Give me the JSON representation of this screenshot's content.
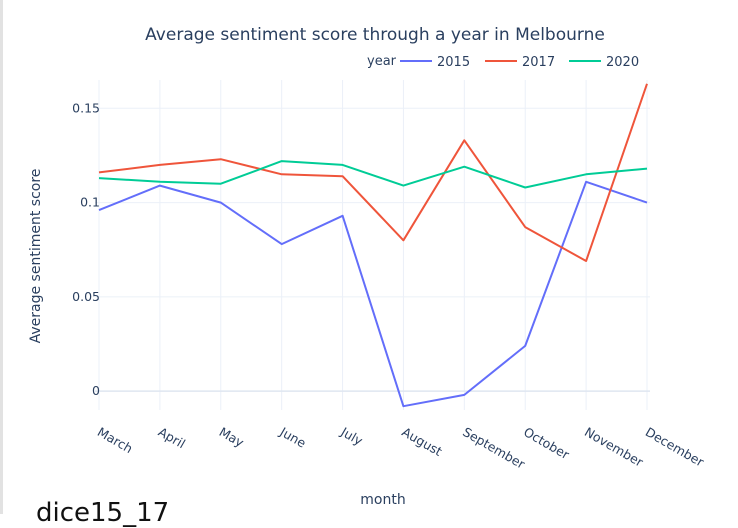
{
  "chart_data": {
    "type": "line",
    "title": "Average sentiment score through a year in Melbourne",
    "xlabel": "month",
    "ylabel": "Average sentiment score",
    "legend_title": "year",
    "legend_position": "top-right",
    "grid": true,
    "categories": [
      "March",
      "April",
      "May",
      "June",
      "July",
      "August",
      "September",
      "October",
      "November",
      "December"
    ],
    "yticks": [
      0,
      0.05,
      0.1,
      0.15
    ],
    "ytick_labels": [
      "0",
      "0.05",
      "0.1",
      "0.15"
    ],
    "ylim": [
      -0.01,
      0.165
    ],
    "series": [
      {
        "name": "2015",
        "color": "#636efa",
        "values": [
          0.096,
          0.109,
          0.1,
          0.078,
          0.093,
          -0.008,
          -0.002,
          0.024,
          0.111,
          0.1
        ]
      },
      {
        "name": "2017",
        "color": "#ef553b",
        "values": [
          0.116,
          0.12,
          0.123,
          0.115,
          0.114,
          0.08,
          0.133,
          0.087,
          0.069,
          0.163
        ]
      },
      {
        "name": "2020",
        "color": "#00cc96",
        "values": [
          0.113,
          0.111,
          0.11,
          0.122,
          0.12,
          0.109,
          0.119,
          0.108,
          0.115,
          0.118
        ]
      }
    ]
  },
  "footer": {
    "text": "dice15_17"
  }
}
